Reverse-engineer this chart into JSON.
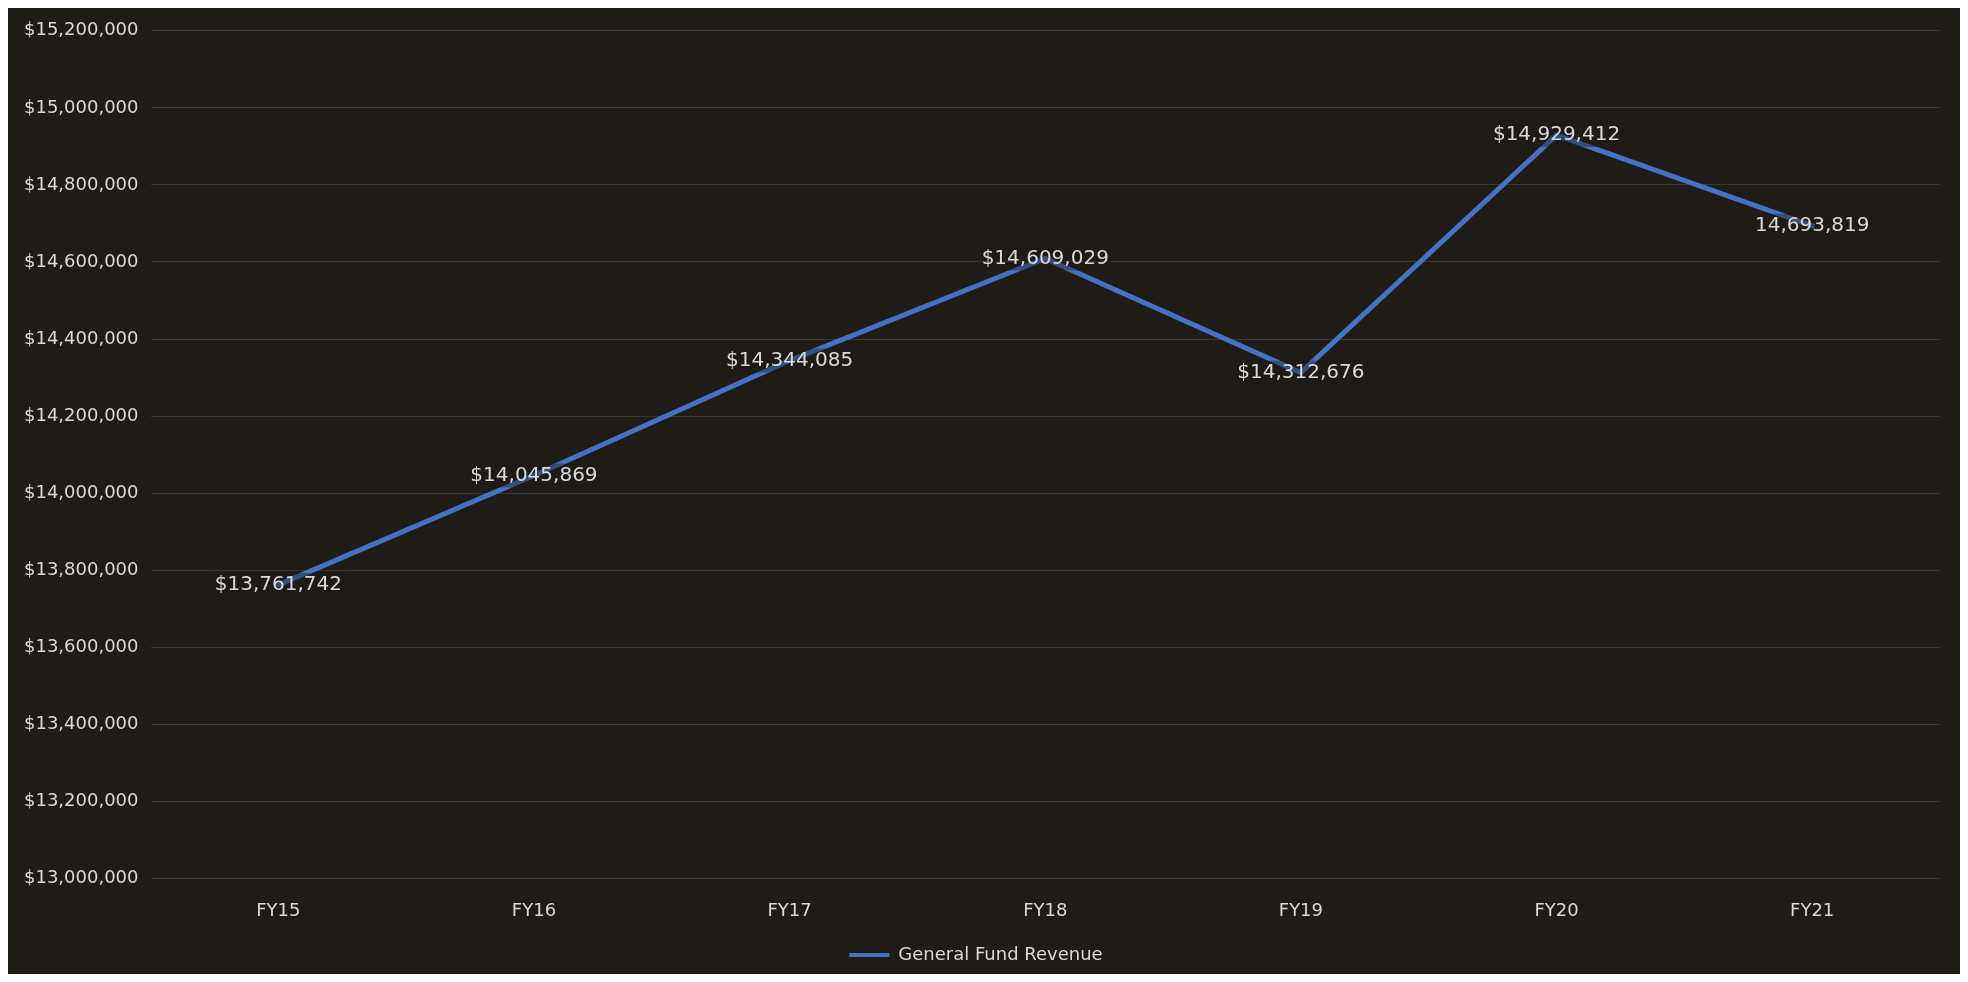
{
  "chart_data": {
    "type": "line",
    "categories": [
      "FY15",
      "FY16",
      "FY17",
      "FY18",
      "FY19",
      "FY20",
      "FY21"
    ],
    "series": [
      {
        "name": "General Fund Revenue",
        "color": "#4472c4",
        "values": [
          13761742,
          14045869,
          14344085,
          14609029,
          14312676,
          14929412,
          14693819
        ],
        "value_labels": [
          "$13,761,742",
          "$14,045,869",
          "$14,344,085",
          "$14,609,029",
          "$14,312,676",
          "$14,929,412",
          "14,693,819"
        ]
      }
    ],
    "ylim": [
      13000000,
      15200000
    ],
    "yticks": [
      {
        "value": 13000000,
        "label": "$13,000,000"
      },
      {
        "value": 13200000,
        "label": "$13,200,000"
      },
      {
        "value": 13400000,
        "label": "$13,400,000"
      },
      {
        "value": 13600000,
        "label": "$13,600,000"
      },
      {
        "value": 13800000,
        "label": "$13,800,000"
      },
      {
        "value": 14000000,
        "label": "$14,000,000"
      },
      {
        "value": 14200000,
        "label": "$14,200,000"
      },
      {
        "value": 14400000,
        "label": "$14,400,000"
      },
      {
        "value": 14600000,
        "label": "$14,600,000"
      },
      {
        "value": 14800000,
        "label": "$14,800,000"
      },
      {
        "value": 15000000,
        "label": "$15,000,000"
      },
      {
        "value": 15200000,
        "label": "$15,200,000"
      }
    ],
    "grid": "y",
    "legend": "bottom",
    "marker": "none",
    "line_style": "solid"
  }
}
